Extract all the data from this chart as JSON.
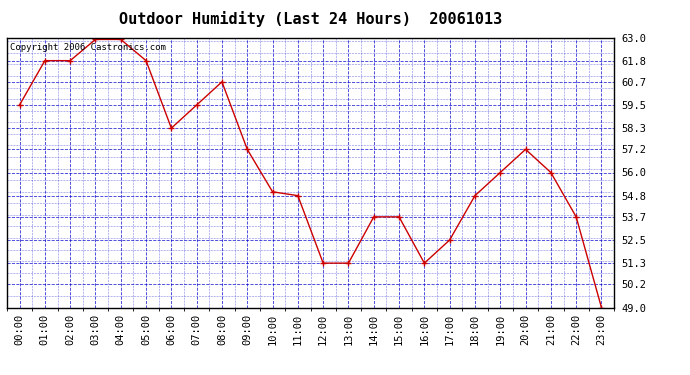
{
  "title": "Outdoor Humidity (Last 24 Hours)  20061013",
  "copyright_text": "Copyright 2006 Castronics.com",
  "x_labels": [
    "00:00",
    "01:00",
    "02:00",
    "03:00",
    "04:00",
    "05:00",
    "06:00",
    "07:00",
    "08:00",
    "09:00",
    "10:00",
    "11:00",
    "12:00",
    "13:00",
    "14:00",
    "15:00",
    "16:00",
    "17:00",
    "18:00",
    "19:00",
    "20:00",
    "21:00",
    "22:00",
    "23:00"
  ],
  "y_values": [
    59.5,
    61.8,
    61.8,
    62.9,
    62.9,
    61.8,
    58.3,
    59.5,
    60.7,
    57.2,
    55.0,
    54.8,
    51.3,
    51.3,
    53.7,
    53.7,
    51.3,
    52.5,
    54.8,
    56.0,
    57.2,
    56.0,
    53.7,
    49.0
  ],
  "ylim_min": 49.0,
  "ylim_max": 63.0,
  "yticks": [
    49.0,
    50.2,
    51.3,
    52.5,
    53.7,
    54.8,
    56.0,
    57.2,
    58.3,
    59.5,
    60.7,
    61.8,
    63.0
  ],
  "line_color": "#cc0000",
  "marker_color": "#cc0000",
  "bg_color": "#ffffff",
  "plot_bg_color": "#ffffff",
  "grid_color": "#0000cc",
  "title_color": "#000000",
  "title_fontsize": 11,
  "tick_label_fontsize": 7.5,
  "copyright_fontsize": 6.5
}
